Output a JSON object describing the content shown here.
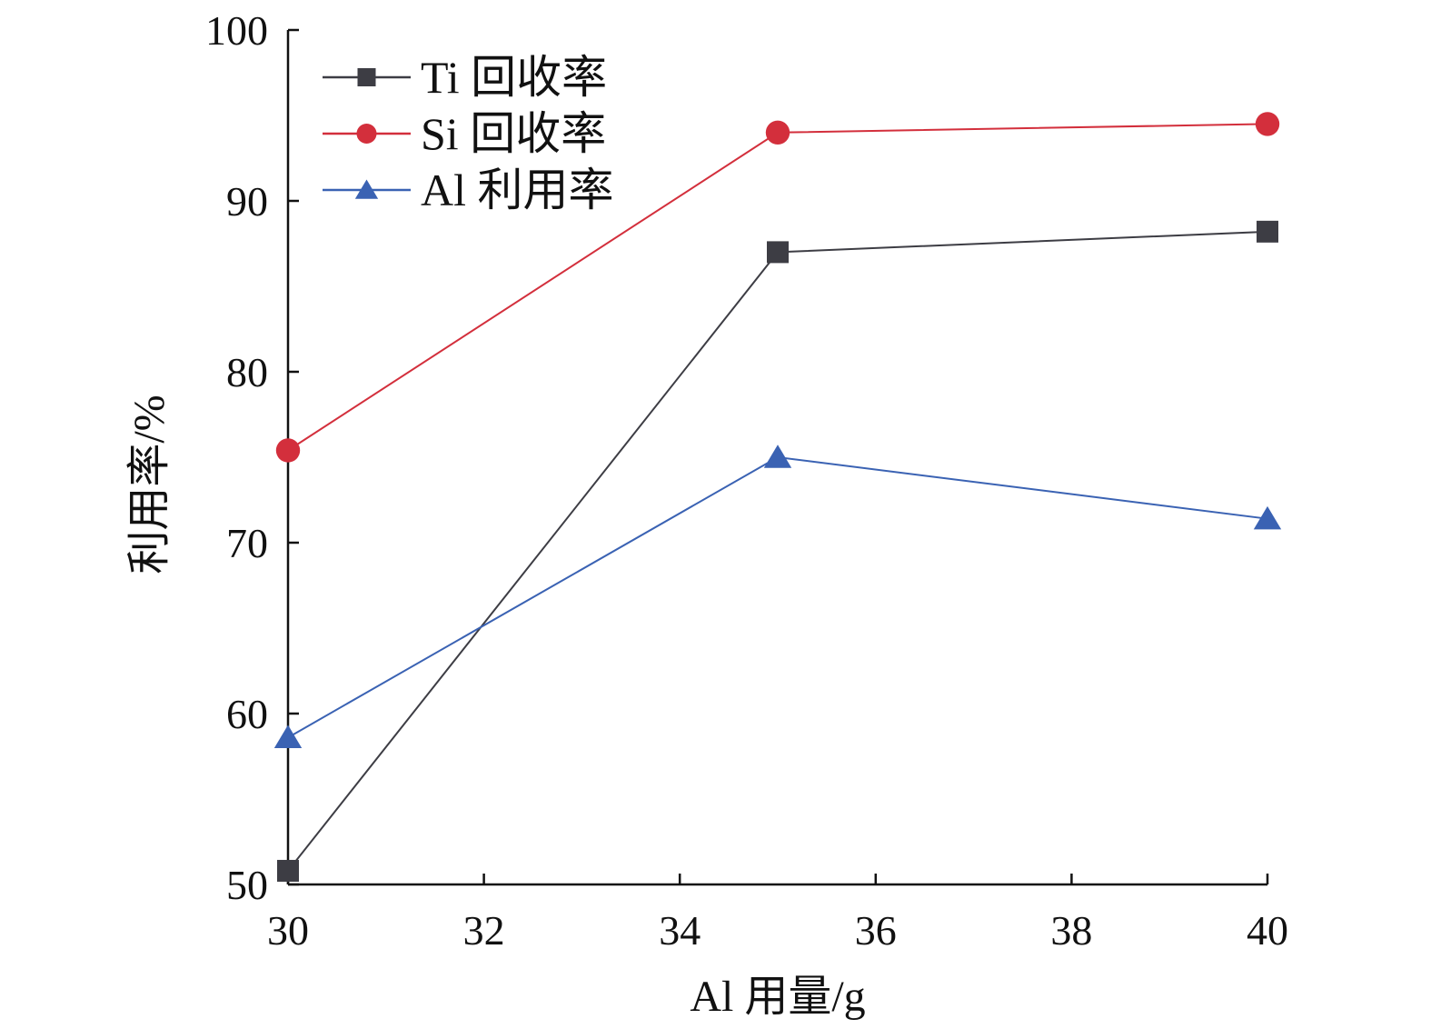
{
  "chart_data": {
    "type": "line",
    "xlabel": "Al 用量/g",
    "ylabel": "利用率/%",
    "xlim": [
      30,
      40
    ],
    "ylim": [
      50,
      100
    ],
    "x_ticks": [
      30,
      32,
      34,
      36,
      38,
      40
    ],
    "y_ticks": [
      50,
      60,
      70,
      80,
      90,
      100
    ],
    "grid": false,
    "legend_position": "top-left",
    "series": [
      {
        "name": "Ti 回收率",
        "marker": "square",
        "color": "#3d3d44",
        "x": [
          30,
          35,
          40
        ],
        "y": [
          50.8,
          87.0,
          88.2
        ]
      },
      {
        "name": "Si 回收率",
        "marker": "circle",
        "color": "#d32f3c",
        "x": [
          30,
          35,
          40
        ],
        "y": [
          75.4,
          94.0,
          94.5
        ]
      },
      {
        "name": "Al 利用率",
        "marker": "triangle",
        "color": "#3a62b3",
        "x": [
          30,
          35,
          40
        ],
        "y": [
          58.6,
          75.0,
          71.4
        ]
      }
    ]
  }
}
